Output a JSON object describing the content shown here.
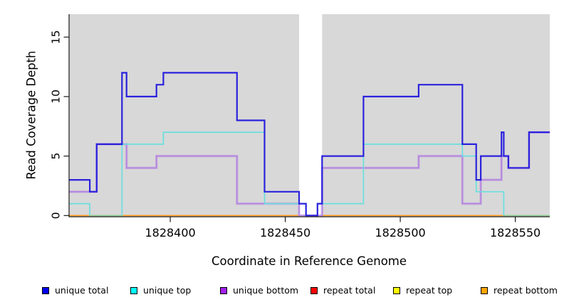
{
  "chart_data": {
    "type": "line",
    "subtype": "step-coverage",
    "title": "",
    "xlabel": "Coordinate in Reference Genome",
    "ylabel": "Read Coverage Depth",
    "xlim": [
      1828356,
      1828565
    ],
    "ylim": [
      0,
      17
    ],
    "x_ticks": [
      1828400,
      1828450,
      1828500,
      1828550
    ],
    "y_ticks": [
      0,
      5,
      10,
      15
    ],
    "grid": "off",
    "panel_background": "#d8d8d8",
    "gap_region": {
      "x_start": 1828456,
      "x_end": 1828466,
      "color": "#ffffff"
    },
    "series": [
      {
        "name": "unique total",
        "color": "#2b22dd",
        "width": 2.2,
        "points": [
          [
            1828356,
            3
          ],
          [
            1828365,
            2
          ],
          [
            1828368,
            6
          ],
          [
            1828379,
            12
          ],
          [
            1828381,
            10
          ],
          [
            1828394,
            11
          ],
          [
            1828397,
            12
          ],
          [
            1828429,
            8
          ],
          [
            1828441,
            2
          ],
          [
            1828456,
            1
          ],
          [
            1828459,
            0
          ],
          [
            1828464,
            1
          ],
          [
            1828466,
            5
          ],
          [
            1828484,
            10
          ],
          [
            1828508,
            11
          ],
          [
            1828527,
            6
          ],
          [
            1828533,
            3
          ],
          [
            1828535,
            5
          ],
          [
            1828544,
            7
          ],
          [
            1828545,
            5
          ],
          [
            1828547,
            4
          ],
          [
            1828556,
            7
          ],
          [
            1828565,
            7
          ]
        ]
      },
      {
        "name": "unique top",
        "color": "#6adede",
        "width": 1.7,
        "points": [
          [
            1828356,
            1
          ],
          [
            1828365,
            0
          ],
          [
            1828379,
            6
          ],
          [
            1828397,
            7
          ],
          [
            1828441,
            1
          ],
          [
            1828459,
            0
          ],
          [
            1828464,
            1
          ],
          [
            1828484,
            6
          ],
          [
            1828527,
            5
          ],
          [
            1828533,
            2
          ],
          [
            1828545,
            0
          ],
          [
            1828565,
            0
          ]
        ]
      },
      {
        "name": "unique bottom",
        "color": "#b383e0",
        "width": 1.6,
        "points": [
          [
            1828356,
            2
          ],
          [
            1828368,
            6
          ],
          [
            1828381,
            4
          ],
          [
            1828394,
            5
          ],
          [
            1828429,
            1
          ],
          [
            1828456,
            0
          ],
          [
            1828466,
            4
          ],
          [
            1828508,
            5
          ],
          [
            1828527,
            1
          ],
          [
            1828535,
            3
          ],
          [
            1828544,
            5
          ],
          [
            1828547,
            4
          ],
          [
            1828556,
            7
          ],
          [
            1828565,
            7
          ]
        ]
      },
      {
        "name": "repeat total",
        "color": "#e02020",
        "width": 1.5,
        "points": [
          [
            1828356,
            0
          ],
          [
            1828565,
            0
          ]
        ]
      },
      {
        "name": "repeat top",
        "color": "#e6e62e",
        "width": 1.5,
        "points": [
          [
            1828356,
            0
          ],
          [
            1828565,
            0
          ]
        ]
      },
      {
        "name": "repeat bottom",
        "color": "#ff9e1f",
        "width": 1.7,
        "points": [
          [
            1828356,
            0
          ],
          [
            1828565,
            0
          ]
        ]
      }
    ],
    "baseline_overlaps": {
      "comment_color": "#8fca8f",
      "segments": [
        {
          "x_start": 1828365,
          "x_end": 1828379
        },
        {
          "x_start": 1828545,
          "x_end": 1828565
        }
      ]
    },
    "legend_position": "bottom"
  },
  "legend": {
    "items": [
      {
        "label": "unique total",
        "swatch_color": "#0000ee"
      },
      {
        "label": "unique top",
        "swatch_color": "#00ffff"
      },
      {
        "label": "unique bottom",
        "swatch_color": "#a020f0"
      },
      {
        "label": "repeat total",
        "swatch_color": "#ff0000"
      },
      {
        "label": "repeat top",
        "swatch_color": "#ffff00"
      },
      {
        "label": "repeat bottom",
        "swatch_color": "#ffa500"
      }
    ]
  },
  "axis_color": "#1a1a1a",
  "tick_label_color": "#000000"
}
